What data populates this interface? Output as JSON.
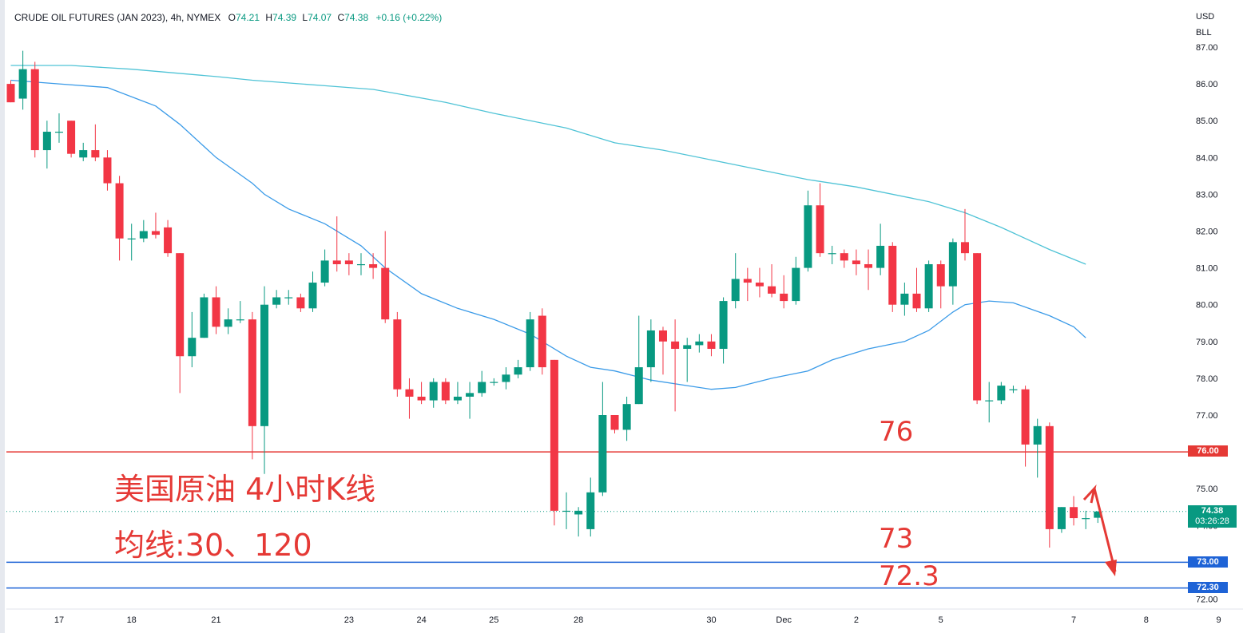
{
  "header": {
    "symbol": "CRUDE OIL FUTURES (JAN 2023), 4h, NYMEX",
    "open_label": "O",
    "open": "74.21",
    "high_label": "H",
    "high": "74.39",
    "low_label": "L",
    "low": "74.07",
    "close_label": "C",
    "close": "74.38",
    "change": "+0.16 (+0.22%)"
  },
  "axis": {
    "currency": "USD",
    "unit": "BLL"
  },
  "annotations": {
    "title": "美国原油 4小时K线",
    "subtitle": "均线:30、120",
    "level_76": "76",
    "level_73": "73",
    "level_723": "72.3"
  },
  "price_tags": {
    "h76": "76.00",
    "last_price": "74.38",
    "countdown": "03:26:28",
    "h73": "73.00",
    "h723": "72.30"
  },
  "colors": {
    "up": "#089981",
    "down": "#f23645",
    "resistance": "#e53935",
    "support": "#1e63d6",
    "ma30": "#3b9be8",
    "ma120": "#4fc3d6",
    "annotation": "#e53935"
  },
  "chart_data": {
    "type": "candlestick",
    "title": "CRUDE OIL FUTURES (JAN 2023), 4h, NYMEX",
    "ylim": [
      72.0,
      87.2
    ],
    "y_ticks": [
      "72.00",
      "73.00",
      "74.00",
      "75.00",
      "76.00",
      "77.00",
      "78.00",
      "79.00",
      "80.00",
      "81.00",
      "82.00",
      "83.00",
      "84.00",
      "85.00",
      "86.00",
      "87.00"
    ],
    "x_ticks": [
      "17",
      "18",
      "21",
      "23",
      "24",
      "25",
      "28",
      "30",
      "Dec",
      "2",
      "5",
      "7",
      "8",
      "9"
    ],
    "x_tick_bar_index": [
      4,
      10,
      17,
      28,
      34,
      40,
      47,
      58,
      64,
      70,
      77,
      88,
      94,
      100
    ],
    "horizontal_lines": [
      {
        "value": 76.0,
        "color": "resistance"
      },
      {
        "value": 73.0,
        "color": "support"
      },
      {
        "value": 72.3,
        "color": "support"
      }
    ],
    "last_price": 74.38,
    "candles": [
      [
        86.0,
        85.5,
        86.1,
        85.5
      ],
      [
        85.6,
        86.4,
        86.9,
        85.3
      ],
      [
        86.4,
        84.2,
        86.6,
        84.0
      ],
      [
        84.2,
        84.7,
        85.0,
        83.7
      ],
      [
        84.7,
        84.7,
        85.2,
        84.4
      ],
      [
        85.0,
        84.1,
        85.0,
        84.0
      ],
      [
        84.0,
        84.2,
        84.4,
        83.9
      ],
      [
        84.2,
        84.0,
        84.9,
        83.9
      ],
      [
        84.0,
        83.3,
        84.2,
        83.1
      ],
      [
        83.3,
        81.8,
        83.5,
        81.2
      ],
      [
        81.8,
        81.8,
        82.2,
        81.2
      ],
      [
        81.8,
        82.0,
        82.3,
        81.7
      ],
      [
        82.0,
        81.9,
        82.5,
        81.8
      ],
      [
        82.1,
        81.4,
        82.3,
        81.3
      ],
      [
        81.4,
        78.6,
        81.4,
        77.6
      ],
      [
        78.6,
        79.1,
        79.8,
        78.3
      ],
      [
        79.1,
        80.2,
        80.3,
        79.1
      ],
      [
        80.2,
        79.4,
        80.5,
        79.2
      ],
      [
        79.4,
        79.6,
        79.9,
        79.2
      ],
      [
        79.6,
        79.6,
        80.1,
        79.5
      ],
      [
        79.6,
        76.7,
        79.8,
        75.8
      ],
      [
        76.7,
        80.0,
        80.5,
        75.4
      ],
      [
        80.0,
        80.2,
        80.4,
        79.9
      ],
      [
        80.2,
        80.2,
        80.4,
        80.0
      ],
      [
        80.2,
        79.9,
        80.3,
        79.8
      ],
      [
        79.9,
        80.6,
        80.9,
        79.8
      ],
      [
        80.6,
        81.2,
        81.5,
        80.5
      ],
      [
        81.2,
        81.1,
        82.4,
        80.9
      ],
      [
        81.2,
        81.1,
        81.4,
        80.8
      ],
      [
        81.1,
        81.1,
        81.4,
        80.8
      ],
      [
        81.1,
        81.0,
        81.4,
        80.7
      ],
      [
        81.0,
        79.6,
        82.0,
        79.5
      ],
      [
        79.6,
        77.7,
        79.8,
        77.5
      ],
      [
        77.7,
        77.5,
        78.0,
        76.9
      ],
      [
        77.5,
        77.4,
        77.9,
        77.3
      ],
      [
        77.4,
        77.9,
        78.0,
        77.2
      ],
      [
        77.9,
        77.4,
        78.0,
        77.3
      ],
      [
        77.4,
        77.5,
        77.9,
        77.3
      ],
      [
        77.5,
        77.6,
        77.9,
        76.9
      ],
      [
        77.6,
        77.9,
        78.2,
        77.5
      ],
      [
        77.9,
        77.9,
        78.0,
        77.8
      ],
      [
        77.9,
        78.1,
        78.3,
        77.7
      ],
      [
        78.1,
        78.3,
        78.5,
        78.0
      ],
      [
        78.3,
        79.6,
        79.8,
        78.2
      ],
      [
        79.7,
        78.3,
        79.9,
        78.1
      ],
      [
        78.5,
        74.4,
        78.5,
        74.0
      ],
      [
        74.4,
        74.4,
        74.9,
        73.9
      ],
      [
        74.3,
        74.4,
        74.5,
        73.7
      ],
      [
        73.9,
        74.9,
        75.3,
        73.7
      ],
      [
        74.9,
        77.0,
        77.9,
        74.8
      ],
      [
        77.0,
        76.6,
        77.0,
        76.5
      ],
      [
        76.6,
        77.3,
        77.5,
        76.3
      ],
      [
        77.3,
        78.3,
        79.7,
        77.3
      ],
      [
        78.3,
        79.3,
        79.6,
        77.9
      ],
      [
        79.3,
        79.0,
        79.4,
        78.1
      ],
      [
        79.0,
        78.8,
        79.6,
        77.1
      ],
      [
        78.8,
        78.9,
        79.1,
        77.9
      ],
      [
        78.9,
        79.0,
        79.2,
        78.7
      ],
      [
        79.0,
        78.8,
        79.2,
        78.6
      ],
      [
        78.8,
        80.1,
        80.2,
        78.4
      ],
      [
        80.1,
        80.7,
        81.4,
        79.9
      ],
      [
        80.7,
        80.6,
        81.0,
        80.1
      ],
      [
        80.6,
        80.5,
        81.0,
        80.2
      ],
      [
        80.5,
        80.3,
        81.1,
        80.2
      ],
      [
        80.3,
        80.1,
        80.8,
        79.9
      ],
      [
        80.1,
        81.0,
        81.3,
        80.0
      ],
      [
        81.0,
        82.7,
        83.1,
        80.9
      ],
      [
        82.7,
        81.4,
        83.3,
        81.3
      ],
      [
        81.4,
        81.4,
        81.6,
        81.1
      ],
      [
        81.4,
        81.2,
        81.5,
        81.0
      ],
      [
        81.2,
        81.1,
        81.5,
        80.8
      ],
      [
        81.1,
        81.0,
        81.5,
        80.4
      ],
      [
        81.0,
        81.6,
        82.2,
        80.8
      ],
      [
        81.6,
        80.0,
        81.7,
        79.8
      ],
      [
        80.0,
        80.3,
        80.6,
        79.7
      ],
      [
        80.3,
        79.9,
        81.0,
        79.8
      ],
      [
        79.9,
        81.1,
        81.2,
        79.8
      ],
      [
        81.1,
        80.5,
        81.2,
        79.9
      ],
      [
        80.5,
        81.7,
        81.8,
        80.0
      ],
      [
        81.7,
        81.4,
        82.6,
        81.2
      ],
      [
        81.4,
        77.4,
        81.4,
        77.3
      ],
      [
        77.4,
        77.4,
        77.9,
        76.8
      ],
      [
        77.4,
        77.8,
        77.9,
        77.3
      ],
      [
        77.7,
        77.7,
        77.8,
        77.6
      ],
      [
        77.7,
        76.2,
        77.8,
        75.6
      ],
      [
        76.2,
        76.7,
        76.9,
        75.3
      ],
      [
        76.7,
        73.9,
        76.8,
        73.4
      ],
      [
        73.9,
        74.5,
        74.5,
        73.8
      ],
      [
        74.5,
        74.2,
        74.8,
        74.0
      ],
      [
        74.2,
        74.2,
        74.4,
        73.9
      ],
      [
        74.21,
        74.38,
        74.39,
        74.07
      ]
    ],
    "ma_series": [
      {
        "name": "MA30",
        "points": [
          [
            0,
            86.1
          ],
          [
            4,
            86.0
          ],
          [
            8,
            85.9
          ],
          [
            12,
            85.4
          ],
          [
            14,
            84.9
          ],
          [
            17,
            84.0
          ],
          [
            20,
            83.3
          ],
          [
            21,
            83.0
          ],
          [
            23,
            82.6
          ],
          [
            26,
            82.2
          ],
          [
            29,
            81.6
          ],
          [
            31,
            81.0
          ],
          [
            34,
            80.3
          ],
          [
            37,
            79.9
          ],
          [
            40,
            79.6
          ],
          [
            43,
            79.2
          ],
          [
            46,
            78.6
          ],
          [
            48,
            78.3
          ],
          [
            50,
            78.2
          ],
          [
            53,
            77.95
          ],
          [
            56,
            77.8
          ],
          [
            58,
            77.7
          ],
          [
            60,
            77.75
          ],
          [
            63,
            78.0
          ],
          [
            66,
            78.2
          ],
          [
            68,
            78.5
          ],
          [
            71,
            78.8
          ],
          [
            74,
            79.0
          ],
          [
            76,
            79.3
          ],
          [
            78,
            79.8
          ],
          [
            79,
            80.0
          ],
          [
            81,
            80.1
          ],
          [
            83,
            80.05
          ],
          [
            86,
            79.7
          ],
          [
            88,
            79.4
          ],
          [
            89,
            79.1
          ]
        ]
      },
      {
        "name": "MA120",
        "points": [
          [
            0,
            86.5
          ],
          [
            5,
            86.5
          ],
          [
            10,
            86.4
          ],
          [
            17,
            86.2
          ],
          [
            20,
            86.1
          ],
          [
            26,
            85.95
          ],
          [
            30,
            85.85
          ],
          [
            36,
            85.5
          ],
          [
            40,
            85.2
          ],
          [
            46,
            84.8
          ],
          [
            50,
            84.4
          ],
          [
            54,
            84.2
          ],
          [
            60,
            83.8
          ],
          [
            66,
            83.4
          ],
          [
            70,
            83.2
          ],
          [
            76,
            82.8
          ],
          [
            79,
            82.5
          ],
          [
            82,
            82.1
          ],
          [
            86,
            81.5
          ],
          [
            89,
            81.1
          ]
        ]
      }
    ]
  }
}
